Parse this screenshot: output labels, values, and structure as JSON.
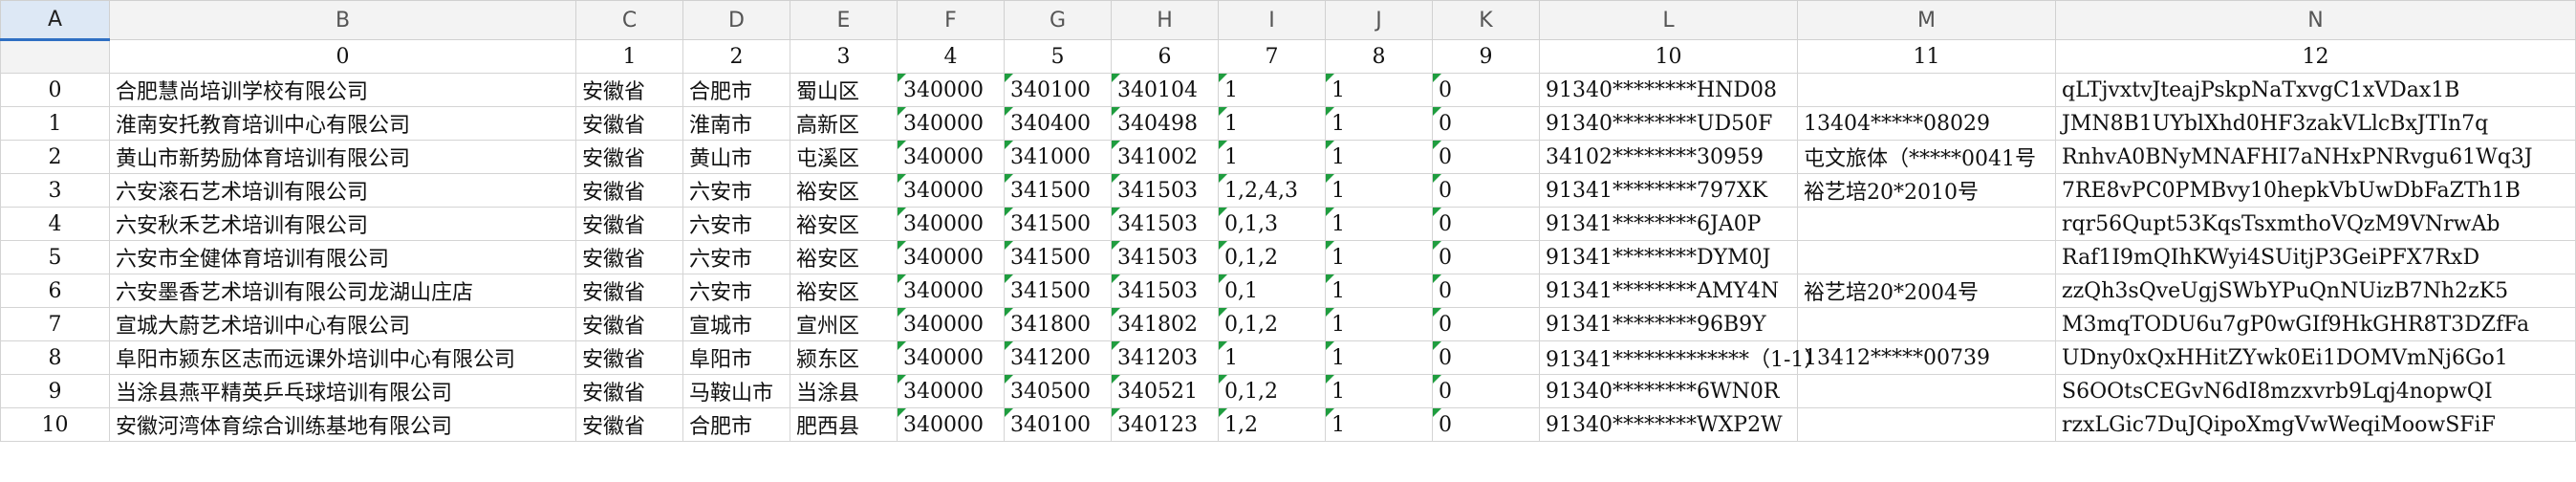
{
  "columns": {
    "letters": [
      "A",
      "B",
      "C",
      "D",
      "E",
      "F",
      "G",
      "H",
      "I",
      "J",
      "K",
      "L",
      "M",
      "N"
    ],
    "headers": [
      "",
      "0",
      "1",
      "2",
      "3",
      "4",
      "5",
      "6",
      "7",
      "8",
      "9",
      "10",
      "11",
      "12"
    ]
  },
  "rows": [
    [
      "0",
      "合肥慧尚培训学校有限公司",
      "安徽省",
      "合肥市",
      "蜀山区",
      "340000",
      "340100",
      "340104",
      "1",
      "1",
      "0",
      "91340********HND08",
      "",
      "qLTjvxtvJteajPskpNaTxvgC1xVDax1B"
    ],
    [
      "1",
      "淮南安托教育培训中心有限公司",
      "安徽省",
      "淮南市",
      "高新区",
      "340000",
      "340400",
      "340498",
      "1",
      "1",
      "0",
      "91340********UD50F",
      "13404*****08029",
      "JMN8B1UYblXhd0HF3zakVLlcBxJTIn7q"
    ],
    [
      "2",
      "黄山市新势励体育培训有限公司",
      "安徽省",
      "黄山市",
      "屯溪区",
      "340000",
      "341000",
      "341002",
      "1",
      "1",
      "0",
      "34102********30959",
      "屯文旅体（*****0041号",
      "RnhvA0BNyMNAFHI7aNHxPNRvgu61Wq3J"
    ],
    [
      "3",
      "六安滚石艺术培训有限公司",
      "安徽省",
      "六安市",
      "裕安区",
      "340000",
      "341500",
      "341503",
      "1,2,4,3",
      "1",
      "0",
      "91341********797XK",
      "裕艺培20*2010号",
      "7RE8vPC0PMBvy10hepkVbUwDbFaZTh1B"
    ],
    [
      "4",
      "六安秋禾艺术培训有限公司",
      "安徽省",
      "六安市",
      "裕安区",
      "340000",
      "341500",
      "341503",
      "0,1,3",
      "1",
      "0",
      "91341********6JA0P",
      "",
      "rqr56Qupt53KqsTsxmthoVQzM9VNrwAb"
    ],
    [
      "5",
      "六安市全健体育培训有限公司",
      "安徽省",
      "六安市",
      "裕安区",
      "340000",
      "341500",
      "341503",
      "0,1,2",
      "1",
      "0",
      "91341********DYM0J",
      "",
      "Raf1I9mQIhKWyi4SUitjP3GeiPFX7RxD"
    ],
    [
      "6",
      "六安墨香艺术培训有限公司龙湖山庄店",
      "安徽省",
      "六安市",
      "裕安区",
      "340000",
      "341500",
      "341503",
      "0,1",
      "1",
      "0",
      "91341********AMY4N",
      "裕艺培20*2004号",
      "zzQh3sQveUgjSWbYPuQnNUizB7Nh2zK5"
    ],
    [
      "7",
      "宣城大蔚艺术培训中心有限公司",
      "安徽省",
      "宣城市",
      "宣州区",
      "340000",
      "341800",
      "341802",
      "0,1,2",
      "1",
      "0",
      "91341********96B9Y",
      "",
      "M3mqTODU6u7gP0wGIf9HkGHR8T3DZfFa"
    ],
    [
      "8",
      "阜阳市颍东区志而远课外培训中心有限公司",
      "安徽省",
      "阜阳市",
      "颍东区",
      "340000",
      "341200",
      "341203",
      "1",
      "1",
      "0",
      "91341*************（1-1）",
      "13412*****00739",
      "UDny0xQxHHitZYwk0Ei1DOMVmNj6Go1"
    ],
    [
      "9",
      "当涂县燕平精英乒乓球培训有限公司",
      "安徽省",
      "马鞍山市",
      "当涂县",
      "340000",
      "340500",
      "340521",
      "0,1,2",
      "1",
      "0",
      "91340********6WN0R",
      "",
      "S6OOtsCEGvN6dI8mzxvrb9Lqj4nopwQI"
    ],
    [
      "10",
      "安徽河湾体育综合训练基地有限公司",
      "安徽省",
      "合肥市",
      "肥西县",
      "340000",
      "340100",
      "340123",
      "1,2",
      "1",
      "0",
      "91340********WXP2W",
      "",
      "rzxLGic7DuJQipoXmgVwWeqiMoowSFiF"
    ]
  ]
}
